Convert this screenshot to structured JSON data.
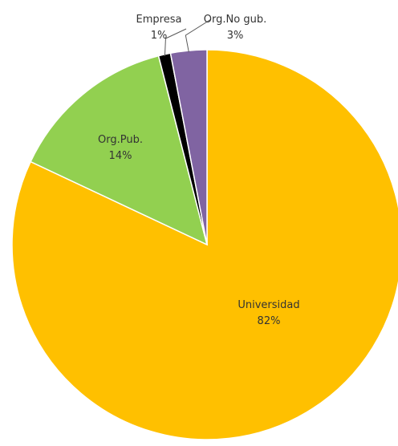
{
  "chart_data": {
    "type": "pie",
    "title": "",
    "start_angle_deg": 0,
    "direction": "clockwise",
    "slices": [
      {
        "label": "Universidad",
        "value": 82,
        "value_label": "82%",
        "color": "#FFC000"
      },
      {
        "label": "Org.Pub.",
        "value": 14,
        "value_label": "14%",
        "color": "#92D050"
      },
      {
        "label": "Empresa",
        "value": 1,
        "value_label": "1%",
        "color": "#000000"
      },
      {
        "label": "Org.No gub.",
        "value": 3,
        "value_label": "3%",
        "color": "#8064A2"
      }
    ],
    "slice_border_color": "#FFFFFF",
    "leader_line_color": "#595959"
  }
}
